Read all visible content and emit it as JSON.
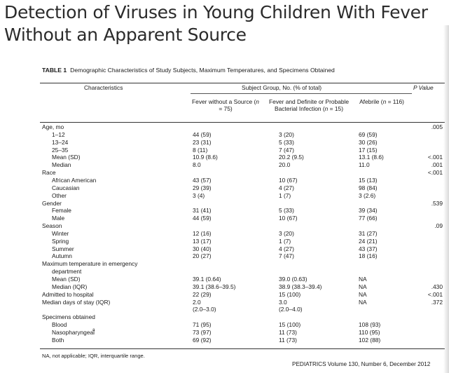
{
  "title": {
    "line1": "Detection of Viruses in Young Children With Fever",
    "line2": "Without an Apparent Source"
  },
  "table": {
    "number": "TABLE 1",
    "caption": "Demographic Characteristics of Study Subjects, Maximum Temperatures, and Specimens Obtained",
    "headers": {
      "characteristics": "Characteristics",
      "subject_group": "Subject Group, No. (% of total)",
      "p_value": "P Value",
      "col1": "Fever without a Source (n = 75)",
      "col2": "Fever and Definite or Probable Bacterial Infection (n = 15)",
      "col3": "Afebrile (n = 116)"
    },
    "rows": [
      {
        "label": "Age, mo",
        "indent": false,
        "c1": "",
        "c2": "",
        "c3": "",
        "p": ".005"
      },
      {
        "label": "1–12",
        "indent": true,
        "c1": "44 (59)",
        "c2": "3 (20)",
        "c3": "69 (59)",
        "p": ""
      },
      {
        "label": "13–24",
        "indent": true,
        "c1": "23 (31)",
        "c2": "5 (33)",
        "c3": "30 (26)",
        "p": ""
      },
      {
        "label": "25–35",
        "indent": true,
        "c1": "8 (11)",
        "c2": "7 (47)",
        "c3": "17 (15)",
        "p": ""
      },
      {
        "label": "Mean (SD)",
        "indent": true,
        "c1": "10.9 (8.6)",
        "c2": "20.2 (9.5)",
        "c3": "13.1 (8.6)",
        "p": "<.001"
      },
      {
        "label": "Median",
        "indent": true,
        "c1": "8.0",
        "c2": "20.0",
        "c3": "11.0",
        "p": ".001"
      },
      {
        "label": "Race",
        "indent": false,
        "c1": "",
        "c2": "",
        "c3": "",
        "p": "<.001"
      },
      {
        "label": "African American",
        "indent": true,
        "c1": "43 (57)",
        "c2": "10 (67)",
        "c3": "15 (13)",
        "p": ""
      },
      {
        "label": "Caucasian",
        "indent": true,
        "c1": "29 (39)",
        "c2": "4 (27)",
        "c3": "98 (84)",
        "p": ""
      },
      {
        "label": "Other",
        "indent": true,
        "c1": "3 (4)",
        "c2": "1 (7)",
        "c3": "3 (2.6)",
        "p": ""
      },
      {
        "label": "Gender",
        "indent": false,
        "c1": "",
        "c2": "",
        "c3": "",
        "p": ".539"
      },
      {
        "label": "Female",
        "indent": true,
        "c1": "31 (41)",
        "c2": "5 (33)",
        "c3": "39 (34)",
        "p": ""
      },
      {
        "label": "Male",
        "indent": true,
        "c1": "44 (59)",
        "c2": "10 (67)",
        "c3": "77 (66)",
        "p": ""
      },
      {
        "label": "Season",
        "indent": false,
        "c1": "",
        "c2": "",
        "c3": "",
        "p": ".09"
      },
      {
        "label": "Winter",
        "indent": true,
        "c1": "12 (16)",
        "c2": "3 (20)",
        "c3": "31 (27)",
        "p": ""
      },
      {
        "label": "Spring",
        "indent": true,
        "c1": "13 (17)",
        "c2": "1 (7)",
        "c3": "24 (21)",
        "p": ""
      },
      {
        "label": "Summer",
        "indent": true,
        "c1": "30 (40)",
        "c2": "4 (27)",
        "c3": "43 (37)",
        "p": ""
      },
      {
        "label": "Autumn",
        "indent": true,
        "c1": "20 (27)",
        "c2": "7 (47)",
        "c3": "18 (16)",
        "p": ""
      },
      {
        "label": "Maximum temperature in emergency",
        "indent": false,
        "c1": "",
        "c2": "",
        "c3": "",
        "p": ""
      },
      {
        "label": "department",
        "indent": true,
        "c1": "",
        "c2": "",
        "c3": "",
        "p": ""
      },
      {
        "label": "Mean (SD)",
        "indent": true,
        "c1": "39.1 (0.64)",
        "c2": "39.0 (0.63)",
        "c3": "NA",
        "p": ""
      },
      {
        "label": "Median (IQR)",
        "indent": true,
        "c1": "39.1 (38.6–39.5)",
        "c2": "38.9 (38.3–39.4)",
        "c3": "NA",
        "p": ".430"
      },
      {
        "label": "Admitted to hospital",
        "indent": false,
        "c1": "22 (29)",
        "c2": "15 (100)",
        "c3": "NA",
        "p": "<.001"
      },
      {
        "label": "Median days of stay (IQR)",
        "indent": false,
        "c1": "2.0",
        "c2": "3.0",
        "c3": "NA",
        "p": ".372"
      },
      {
        "label": "",
        "indent": false,
        "c1": "(2.0–3.0)",
        "c2": "(2.0–4.0)",
        "c3": "",
        "p": ""
      },
      {
        "label": "Specimens obtained",
        "indent": false,
        "c1": "",
        "c2": "",
        "c3": "",
        "p": ""
      },
      {
        "label": "Blood",
        "indent": true,
        "c1": "71 (95)",
        "c2": "15 (100)",
        "c3": "108 (93)",
        "p": ""
      },
      {
        "label": "Nasopharyngeal",
        "sup": "a",
        "indent": true,
        "c1": "73 (97)",
        "c2": "11 (73)",
        "c3": "110 (95)",
        "p": ""
      },
      {
        "label": "Both",
        "indent": true,
        "c1": "69 (92)",
        "c2": "11 (73)",
        "c3": "102 (88)",
        "p": ""
      }
    ],
    "footnote": "NA, not applicable; IQR, interquartile range."
  },
  "source": "PEDIATRICS Volume 130, Number 6, December 2012"
}
